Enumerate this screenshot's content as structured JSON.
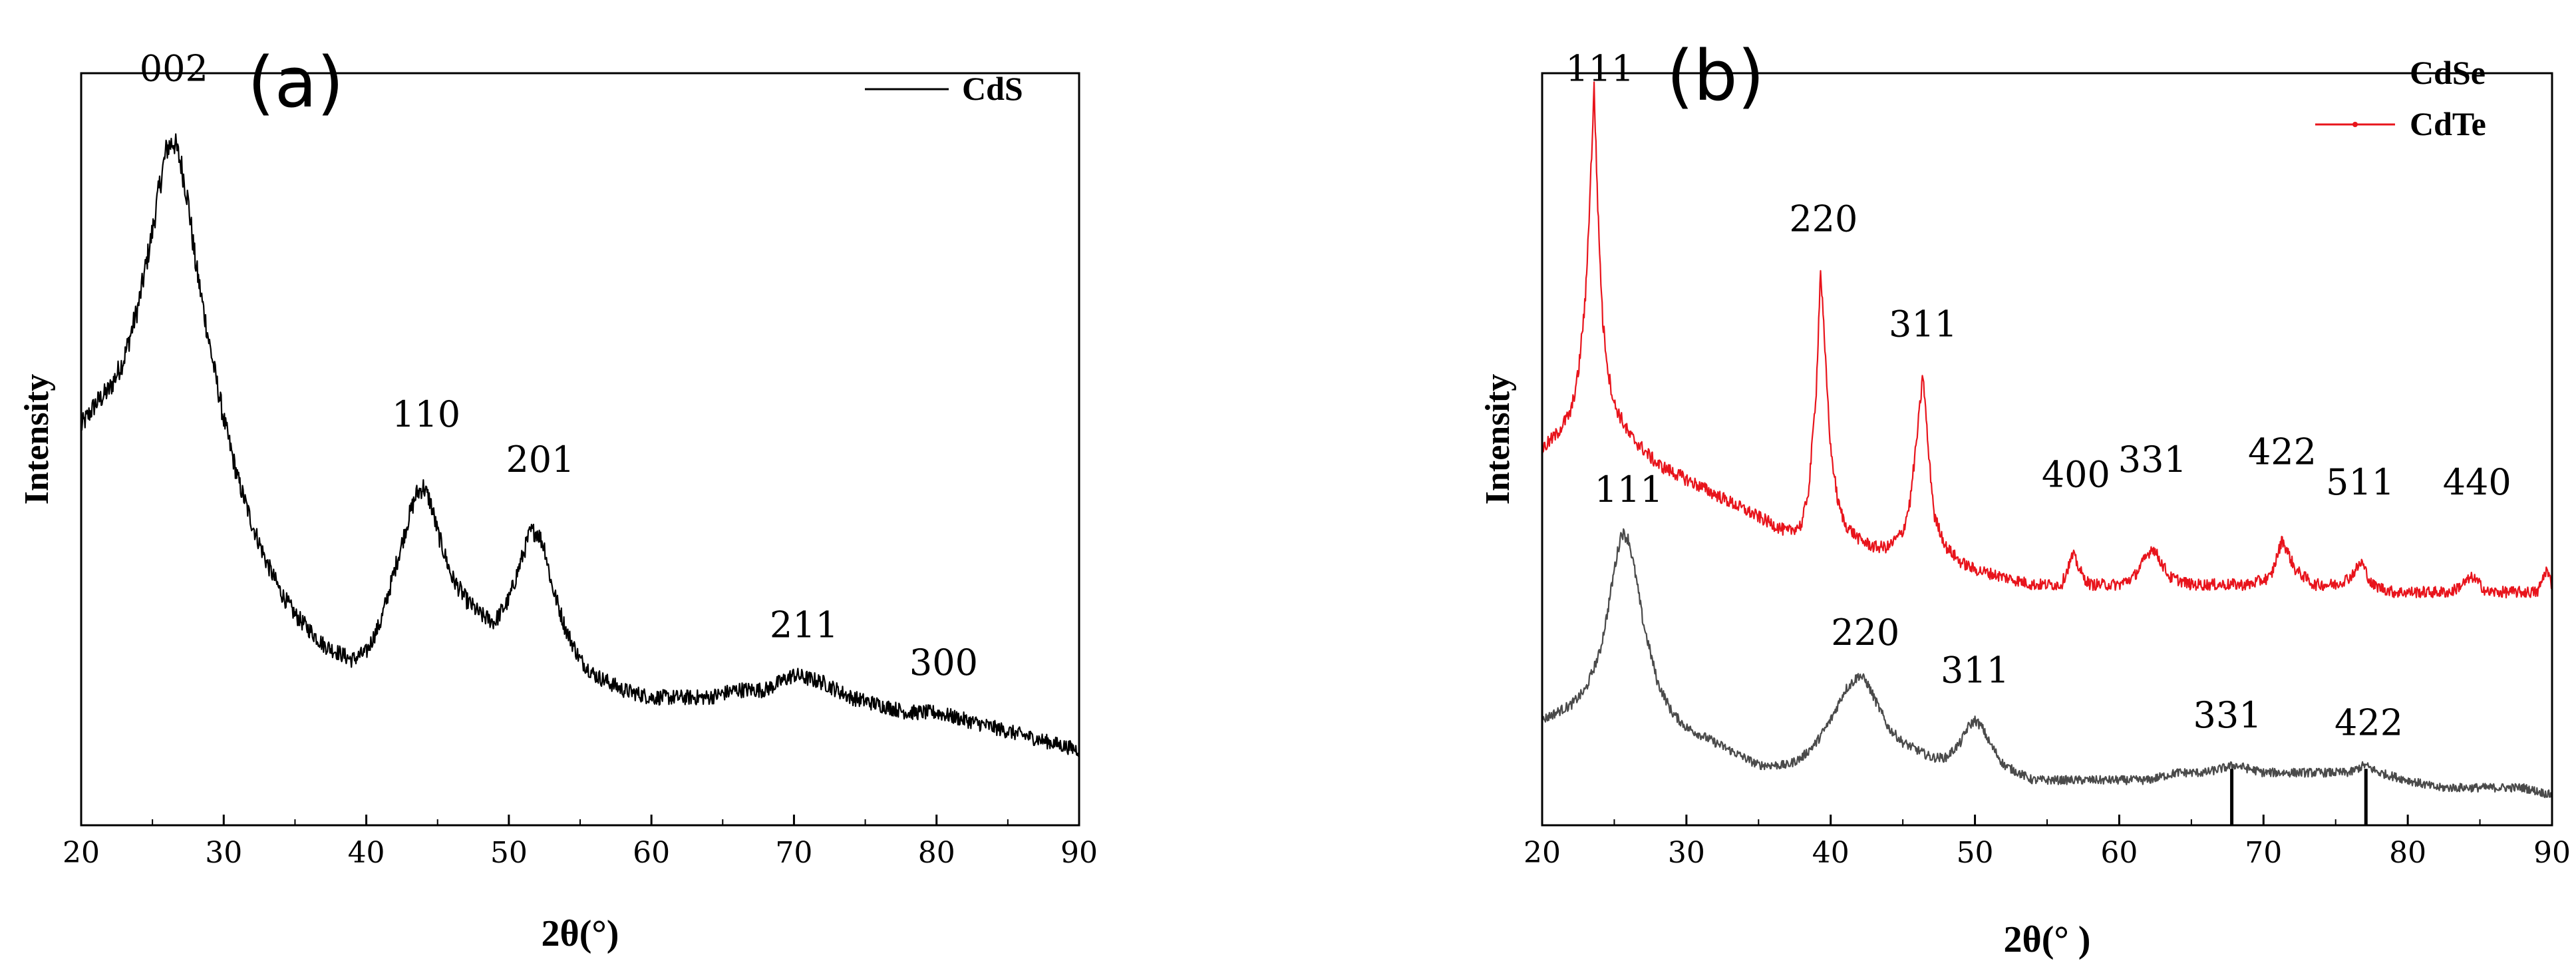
{
  "chart_data": [
    {
      "type": "line",
      "panel_label": "(a)",
      "xlabel": "2θ(°)",
      "ylabel": "Intensity",
      "xlim": [
        20,
        90
      ],
      "ylim": [
        0,
        1
      ],
      "xticks": [
        "20",
        "30",
        "40",
        "50",
        "60",
        "70",
        "80",
        "90"
      ],
      "y_tick_labels": false,
      "grid": false,
      "legend": {
        "position": "top-right",
        "entries": [
          {
            "name": "CdS",
            "color": "#000000"
          }
        ]
      },
      "series": [
        {
          "name": "CdS",
          "color": "#000000",
          "x": [
            20,
            21,
            22,
            23,
            24,
            25,
            25.5,
            26,
            26.5,
            27,
            27.5,
            28,
            29,
            30,
            31,
            32,
            33,
            34,
            35,
            36,
            37,
            38,
            39,
            40,
            41,
            42,
            43,
            43.5,
            44,
            44.5,
            45,
            46,
            47,
            48,
            49,
            50,
            51,
            51.5,
            52,
            52.5,
            53,
            54,
            55,
            56,
            57,
            58,
            60,
            62,
            64,
            66,
            68,
            70,
            72,
            74,
            76,
            78,
            80,
            82,
            84,
            86,
            88,
            90
          ],
          "y": [
            0.53,
            0.56,
            0.58,
            0.62,
            0.69,
            0.79,
            0.85,
            0.9,
            0.91,
            0.88,
            0.83,
            0.75,
            0.64,
            0.54,
            0.46,
            0.4,
            0.35,
            0.31,
            0.28,
            0.26,
            0.24,
            0.23,
            0.22,
            0.23,
            0.27,
            0.34,
            0.41,
            0.44,
            0.45,
            0.43,
            0.39,
            0.33,
            0.3,
            0.28,
            0.27,
            0.3,
            0.36,
            0.39,
            0.39,
            0.37,
            0.32,
            0.26,
            0.22,
            0.2,
            0.19,
            0.18,
            0.17,
            0.17,
            0.17,
            0.18,
            0.18,
            0.2,
            0.19,
            0.17,
            0.16,
            0.15,
            0.15,
            0.14,
            0.13,
            0.12,
            0.11,
            0.1
          ]
        }
      ],
      "annotations": [
        {
          "text": "002",
          "x": 26.5,
          "y": 0.99
        },
        {
          "text": "110",
          "x": 44.2,
          "y": 0.53
        },
        {
          "text": "201",
          "x": 52.2,
          "y": 0.47
        },
        {
          "text": "211",
          "x": 70.7,
          "y": 0.25
        },
        {
          "text": "300",
          "x": 80.5,
          "y": 0.2
        }
      ]
    },
    {
      "type": "line",
      "panel_label": "(b)",
      "xlabel": "2θ(° )",
      "ylabel": "Intensity",
      "xlim": [
        20,
        90
      ],
      "ylim": [
        0,
        1
      ],
      "xticks": [
        "20",
        "30",
        "40",
        "50",
        "60",
        "70",
        "80",
        "90"
      ],
      "y_tick_labels": false,
      "grid": false,
      "legend": {
        "position": "top-right",
        "entries": [
          {
            "name": "CdSe",
            "color": "#000000"
          },
          {
            "name": "CdTe",
            "color": "#e8141c"
          }
        ]
      },
      "series": [
        {
          "name": "CdSe",
          "color": "#4a4a4a",
          "x": [
            20,
            21,
            22,
            23,
            24,
            24.5,
            25,
            25.5,
            26,
            26.5,
            27,
            28,
            29,
            30,
            31,
            32,
            33,
            34,
            35,
            36,
            37,
            38,
            39,
            40,
            41,
            41.5,
            42,
            42.5,
            43,
            44,
            45,
            46,
            47,
            48,
            49,
            49.5,
            50,
            50.5,
            51,
            52,
            53,
            54,
            56,
            58,
            60,
            62,
            64,
            66,
            68,
            70,
            72,
            74,
            76,
            77,
            78,
            80,
            82,
            84,
            86,
            88,
            90
          ],
          "y": [
            0.14,
            0.15,
            0.16,
            0.18,
            0.23,
            0.28,
            0.34,
            0.39,
            0.38,
            0.33,
            0.27,
            0.19,
            0.15,
            0.13,
            0.12,
            0.11,
            0.1,
            0.09,
            0.08,
            0.08,
            0.08,
            0.09,
            0.11,
            0.14,
            0.18,
            0.19,
            0.2,
            0.19,
            0.17,
            0.13,
            0.11,
            0.1,
            0.09,
            0.09,
            0.11,
            0.13,
            0.14,
            0.13,
            0.11,
            0.08,
            0.07,
            0.06,
            0.06,
            0.06,
            0.06,
            0.06,
            0.07,
            0.07,
            0.08,
            0.07,
            0.07,
            0.07,
            0.07,
            0.08,
            0.07,
            0.06,
            0.05,
            0.05,
            0.05,
            0.05,
            0.04
          ]
        },
        {
          "name": "CdTe",
          "color": "#e8141c",
          "x": [
            20,
            21,
            22,
            22.5,
            23,
            23.3,
            23.6,
            23.9,
            24.2,
            24.6,
            25,
            26,
            27,
            28,
            30,
            32,
            34,
            36,
            37,
            38,
            38.5,
            39,
            39.3,
            39.6,
            40,
            40.5,
            41,
            42,
            43,
            44,
            45,
            45.5,
            46,
            46.4,
            46.8,
            47.2,
            48,
            49,
            50,
            52,
            54,
            56,
            56.8,
            57.5,
            58,
            60,
            61,
            62.3,
            63.5,
            65,
            67,
            69,
            70.5,
            71.3,
            72.2,
            73.5,
            75,
            76,
            76.8,
            77.5,
            79,
            81,
            83,
            84.5,
            85.5,
            87,
            89,
            89.6,
            90
          ],
          "y": [
            0.5,
            0.52,
            0.55,
            0.6,
            0.7,
            0.83,
            0.98,
            0.8,
            0.67,
            0.6,
            0.56,
            0.52,
            0.5,
            0.48,
            0.46,
            0.44,
            0.42,
            0.4,
            0.39,
            0.4,
            0.45,
            0.58,
            0.74,
            0.63,
            0.5,
            0.43,
            0.4,
            0.38,
            0.37,
            0.37,
            0.39,
            0.43,
            0.52,
            0.6,
            0.49,
            0.41,
            0.37,
            0.35,
            0.34,
            0.33,
            0.32,
            0.32,
            0.36,
            0.33,
            0.32,
            0.32,
            0.33,
            0.37,
            0.33,
            0.32,
            0.32,
            0.32,
            0.33,
            0.38,
            0.34,
            0.32,
            0.32,
            0.33,
            0.35,
            0.32,
            0.31,
            0.31,
            0.31,
            0.33,
            0.31,
            0.31,
            0.31,
            0.34,
            0.32
          ]
        }
      ],
      "annotations": [
        {
          "text": "111",
          "x": 24,
          "y": 0.99,
          "series": "CdTe"
        },
        {
          "text": "220",
          "x": 39.5,
          "y": 0.79,
          "series": "CdTe"
        },
        {
          "text": "311",
          "x": 46.4,
          "y": 0.65,
          "series": "CdTe"
        },
        {
          "text": "400",
          "x": 57,
          "y": 0.45,
          "series": "CdTe"
        },
        {
          "text": "331",
          "x": 62.3,
          "y": 0.47,
          "series": "CdTe"
        },
        {
          "text": "422",
          "x": 71.3,
          "y": 0.48,
          "series": "CdTe"
        },
        {
          "text": "511",
          "x": 76.7,
          "y": 0.44,
          "series": "CdTe"
        },
        {
          "text": "440",
          "x": 84.8,
          "y": 0.44,
          "series": "CdTe"
        },
        {
          "text": "111",
          "x": 26,
          "y": 0.43,
          "series": "CdSe"
        },
        {
          "text": "220",
          "x": 42.4,
          "y": 0.24,
          "series": "CdSe"
        },
        {
          "text": "311",
          "x": 50,
          "y": 0.19,
          "series": "CdSe"
        },
        {
          "text": "331",
          "x": 67.5,
          "y": 0.13,
          "series": "CdSe"
        },
        {
          "text": "422",
          "x": 77.3,
          "y": 0.12,
          "series": "CdSe"
        }
      ],
      "markers": [
        {
          "x": 67.8,
          "y": 0.075,
          "series": "CdSe"
        },
        {
          "x": 77.1,
          "y": 0.075,
          "series": "CdSe"
        }
      ]
    }
  ]
}
